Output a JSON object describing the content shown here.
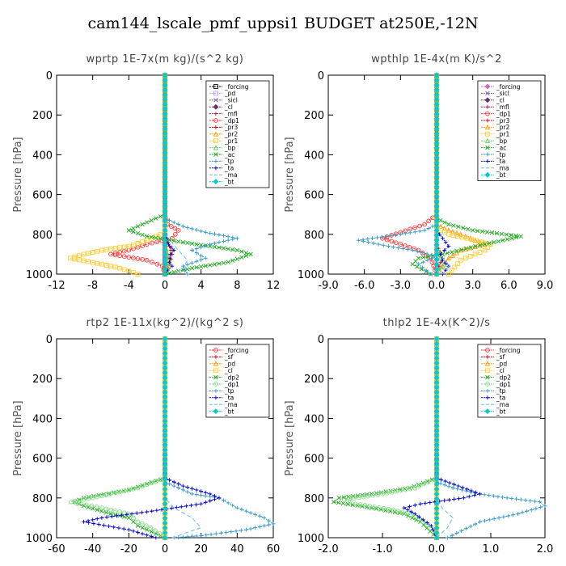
{
  "figure": {
    "title": "cam144_lscale_pmf_uppsi1  BUDGET at250E,-12N"
  },
  "chart_data": [
    {
      "type": "line",
      "title": "wprtp   1E-7x(m kg)/(s^2 kg)",
      "ylabel": "Pressure [hPa]",
      "xlim": [
        -12,
        12
      ],
      "ylim": [
        1000,
        0
      ],
      "y_inverted": true,
      "xticks": [
        "-12",
        "-8",
        "-4",
        "0",
        "4",
        "8",
        "12"
      ],
      "yticks": [
        "0",
        "200",
        "400",
        "600",
        "800",
        "1000"
      ],
      "legend": {
        "placement": "top-right"
      },
      "series": [
        {
          "name": "_forcing",
          "color": "#000000",
          "marker": "square",
          "x": [
            0,
            0
          ],
          "y": [
            0,
            1000
          ]
        },
        {
          "name": "_pd",
          "color": "#b8a4e6",
          "marker": "square",
          "x": [
            0,
            0
          ],
          "y": [
            0,
            1000
          ]
        },
        {
          "name": "_sicl",
          "color": "#8a5aa8",
          "marker": "x",
          "x": [
            0,
            0
          ],
          "y": [
            0,
            1000
          ]
        },
        {
          "name": "_cl",
          "color": "#6b2c6b",
          "marker": "diamond",
          "x": [
            0,
            0
          ],
          "y": [
            0,
            1000
          ]
        },
        {
          "name": "_mfl",
          "color": "#9e1b5a",
          "marker": "cross",
          "x": [
            0,
            0
          ],
          "y": [
            0,
            1000
          ]
        },
        {
          "name": "_dp1",
          "color": "#ff3333",
          "marker": "circle",
          "x": [
            0,
            0,
            0.3,
            1.5,
            0.8,
            -2,
            -4,
            -6,
            -2,
            -0.3,
            0
          ],
          "y": [
            0,
            700,
            750,
            780,
            820,
            850,
            880,
            900,
            930,
            960,
            1000
          ]
        },
        {
          "name": "_pr3",
          "color": "#cc0000",
          "marker": "cross",
          "x": [
            0,
            0,
            0.5,
            0.8,
            0.5,
            0,
            0
          ],
          "y": [
            0,
            800,
            860,
            900,
            950,
            980,
            1000
          ]
        },
        {
          "name": "_pr2",
          "color": "#ff9900",
          "marker": "triangle",
          "x": [
            0,
            0,
            0.3,
            0.5,
            0,
            0
          ],
          "y": [
            0,
            850,
            900,
            950,
            980,
            1000
          ]
        },
        {
          "name": "_pr1",
          "color": "#ffcc33",
          "marker": "square",
          "x": [
            0,
            0,
            -0.5,
            -2,
            -4,
            -7,
            -9,
            -10.5,
            -7,
            -5,
            -3
          ],
          "y": [
            0,
            780,
            800,
            830,
            860,
            880,
            900,
            920,
            950,
            970,
            1000
          ]
        },
        {
          "name": "_bp",
          "color": "#66cc66",
          "marker": "triangle",
          "x": [
            0,
            0,
            0.2,
            0.4,
            0.2,
            0
          ],
          "y": [
            0,
            850,
            900,
            950,
            980,
            1000
          ]
        },
        {
          "name": "_ac",
          "color": "#22aa22",
          "marker": "x",
          "x": [
            0,
            0,
            -2,
            -4,
            -2,
            2,
            5,
            8,
            9.5,
            7,
            3,
            0
          ],
          "y": [
            0,
            700,
            740,
            780,
            810,
            840,
            860,
            880,
            900,
            940,
            970,
            1000
          ]
        },
        {
          "name": "_tp",
          "color": "#3399cc",
          "marker": "cross",
          "x": [
            0,
            0,
            2,
            4.5,
            8,
            5,
            3,
            4.5,
            2,
            2.5
          ],
          "y": [
            0,
            720,
            760,
            790,
            820,
            850,
            880,
            920,
            960,
            1000
          ]
        },
        {
          "name": "_ta",
          "color": "#0000cc",
          "marker": "cross",
          "x": [
            0,
            0,
            0.4,
            1,
            0.6,
            0.5,
            0.8,
            0.3,
            0
          ],
          "y": [
            0,
            800,
            850,
            880,
            900,
            940,
            960,
            980,
            1000
          ]
        },
        {
          "name": "_ma",
          "color": "#66bbee",
          "marker": "none",
          "x": [
            0,
            0,
            1.5,
            2.5,
            2,
            1
          ],
          "y": [
            0,
            800,
            880,
            930,
            970,
            1000
          ]
        },
        {
          "name": "_bt",
          "color": "#00cccc",
          "marker": "diamond",
          "x": [
            0,
            0
          ],
          "y": [
            0,
            1000
          ]
        }
      ]
    },
    {
      "type": "line",
      "title": "wpthlp   1E-4x(m K)/s^2",
      "ylabel": "Pressure [hPa]",
      "xlim": [
        -9,
        9
      ],
      "ylim": [
        1000,
        0
      ],
      "y_inverted": true,
      "xticks": [
        "-9.0",
        "-6.0",
        "-3.0",
        "0.0",
        "3.0",
        "6.0",
        "9.0"
      ],
      "yticks": [
        "0",
        "200",
        "400",
        "600",
        "800",
        "1000"
      ],
      "legend": {
        "placement": "top-right"
      },
      "series": [
        {
          "name": "_forcing",
          "color": "#cc66cc",
          "marker": "diamond",
          "x": [
            0,
            0
          ],
          "y": [
            0,
            1000
          ]
        },
        {
          "name": "_sicl",
          "color": "#8a5aa8",
          "marker": "x",
          "x": [
            0,
            0
          ],
          "y": [
            0,
            1000
          ]
        },
        {
          "name": "_cl",
          "color": "#6b2c6b",
          "marker": "diamond",
          "x": [
            0,
            0
          ],
          "y": [
            0,
            1000
          ]
        },
        {
          "name": "_mfl",
          "color": "#9e1b5a",
          "marker": "cross",
          "x": [
            0,
            0
          ],
          "y": [
            0,
            1000
          ]
        },
        {
          "name": "_dp1",
          "color": "#ff3333",
          "marker": "circle",
          "x": [
            0,
            0,
            -1,
            -3,
            -4.5,
            -3,
            -1.5,
            -0.5,
            0
          ],
          "y": [
            0,
            700,
            750,
            790,
            820,
            850,
            880,
            920,
            1000
          ]
        },
        {
          "name": "_pr3",
          "color": "#cc0000",
          "marker": "cross",
          "x": [
            0,
            0,
            0.3,
            0.5,
            0.2,
            0
          ],
          "y": [
            0,
            850,
            890,
            920,
            960,
            1000
          ]
        },
        {
          "name": "_pr2",
          "color": "#ff9900",
          "marker": "triangle",
          "x": [
            0,
            0,
            1,
            2,
            4,
            2,
            1,
            0
          ],
          "y": [
            0,
            750,
            780,
            800,
            850,
            880,
            920,
            1000
          ]
        },
        {
          "name": "_pr1",
          "color": "#ffcc33",
          "marker": "square",
          "x": [
            0,
            0,
            1,
            2.5,
            4.5,
            4,
            2,
            1
          ],
          "y": [
            0,
            770,
            800,
            820,
            850,
            880,
            930,
            1000
          ]
        },
        {
          "name": "_bp",
          "color": "#66cc66",
          "marker": "triangle",
          "x": [
            0,
            0,
            0.3,
            0.6,
            0.2,
            0
          ],
          "y": [
            0,
            880,
            920,
            950,
            980,
            1000
          ]
        },
        {
          "name": "_ac",
          "color": "#22aa22",
          "marker": "x",
          "x": [
            0,
            0,
            1,
            3,
            7,
            4,
            0.5,
            -1.5,
            -2,
            -0.5
          ],
          "y": [
            0,
            720,
            750,
            780,
            810,
            850,
            900,
            920,
            950,
            1000
          ]
        },
        {
          "name": "_tp",
          "color": "#3399cc",
          "marker": "cross",
          "x": [
            0,
            0,
            -1,
            -3,
            -6.5,
            -4,
            -2,
            0,
            -1.5,
            -0.5
          ],
          "y": [
            0,
            750,
            780,
            800,
            830,
            860,
            880,
            910,
            950,
            1000
          ]
        },
        {
          "name": "_ta",
          "color": "#0000cc",
          "marker": "cross",
          "x": [
            0,
            0,
            0.5,
            1,
            0.3,
            0.5,
            1,
            0.5
          ],
          "y": [
            0,
            780,
            820,
            860,
            900,
            930,
            960,
            1000
          ]
        },
        {
          "name": "_ma",
          "color": "#66bbee",
          "marker": "none",
          "x": [
            0,
            0,
            0.5,
            1,
            0.5
          ],
          "y": [
            0,
            850,
            920,
            960,
            1000
          ]
        },
        {
          "name": "_bt",
          "color": "#00cccc",
          "marker": "diamond",
          "x": [
            0,
            0
          ],
          "y": [
            0,
            1000
          ]
        }
      ]
    },
    {
      "type": "line",
      "title": "rtp2   1E-11x(kg^2)/(kg^2 s)",
      "ylabel": "Pressure [hPa]",
      "xlim": [
        -60,
        60
      ],
      "ylim": [
        1000,
        0
      ],
      "y_inverted": true,
      "xticks": [
        "-60",
        "-40",
        "-20",
        "0",
        "20",
        "40",
        "60"
      ],
      "yticks": [
        "0",
        "200",
        "400",
        "600",
        "800",
        "1000"
      ],
      "legend": {
        "placement": "top-right"
      },
      "series": [
        {
          "name": "_forcing",
          "color": "#ff3333",
          "marker": "circle",
          "x": [
            0,
            0
          ],
          "y": [
            0,
            1000
          ]
        },
        {
          "name": "_sf",
          "color": "#cc0000",
          "marker": "cross",
          "x": [
            0,
            0
          ],
          "y": [
            0,
            1000
          ]
        },
        {
          "name": "_pd",
          "color": "#ff9900",
          "marker": "triangle",
          "x": [
            0,
            0
          ],
          "y": [
            0,
            1000
          ]
        },
        {
          "name": "_cl",
          "color": "#ffcc33",
          "marker": "square",
          "x": [
            0,
            0
          ],
          "y": [
            0,
            1000
          ]
        },
        {
          "name": "_dp2",
          "color": "#22aa22",
          "marker": "x",
          "x": [
            0,
            0,
            -20,
            -45,
            -50,
            -45,
            -30,
            -20,
            -15,
            -10,
            -5,
            0
          ],
          "y": [
            0,
            700,
            760,
            800,
            820,
            840,
            880,
            900,
            940,
            960,
            980,
            1000
          ]
        },
        {
          "name": "_dp1",
          "color": "#88dd88",
          "marker": "circle",
          "x": [
            0,
            0,
            -15,
            -40,
            -52,
            -35,
            -20,
            -15,
            -8,
            -3,
            0
          ],
          "y": [
            0,
            700,
            750,
            800,
            820,
            850,
            880,
            920,
            950,
            980,
            1000
          ]
        },
        {
          "name": "_tp",
          "color": "#3399cc",
          "marker": "cross",
          "x": [
            0,
            0,
            5,
            15,
            30,
            40,
            55,
            60,
            45,
            20,
            5
          ],
          "y": [
            0,
            720,
            740,
            780,
            800,
            850,
            900,
            930,
            960,
            990,
            1000
          ]
        },
        {
          "name": "_ta",
          "color": "#0000cc",
          "marker": "cross",
          "x": [
            0,
            0,
            10,
            25,
            30,
            20,
            -10,
            -35,
            -45,
            -20,
            -5
          ],
          "y": [
            0,
            700,
            740,
            780,
            800,
            830,
            870,
            900,
            920,
            960,
            1000
          ]
        },
        {
          "name": "_ma",
          "color": "#66bbee",
          "marker": "none",
          "x": [
            0,
            0,
            5,
            15,
            20,
            10,
            5
          ],
          "y": [
            0,
            800,
            850,
            900,
            950,
            980,
            1000
          ]
        },
        {
          "name": "_bt",
          "color": "#00cccc",
          "marker": "diamond",
          "x": [
            0,
            0
          ],
          "y": [
            0,
            1000
          ]
        }
      ]
    },
    {
      "type": "line",
      "title": "thlp2   1E-4x(K^2)/s",
      "ylabel": "Pressure [hPa]",
      "xlim": [
        -2,
        2
      ],
      "ylim": [
        1000,
        0
      ],
      "y_inverted": true,
      "xticks": [
        "-2.0",
        "-1.0",
        "0.0",
        "1.0",
        "2.0"
      ],
      "yticks": [
        "0",
        "200",
        "400",
        "600",
        "800",
        "1000"
      ],
      "legend": {
        "placement": "top-right"
      },
      "series": [
        {
          "name": "_forcing",
          "color": "#ff3333",
          "marker": "circle",
          "x": [
            0,
            0
          ],
          "y": [
            0,
            1000
          ]
        },
        {
          "name": "_sf",
          "color": "#cc0000",
          "marker": "cross",
          "x": [
            0,
            0
          ],
          "y": [
            0,
            1000
          ]
        },
        {
          "name": "_pd",
          "color": "#ff9900",
          "marker": "triangle",
          "x": [
            0,
            0
          ],
          "y": [
            0,
            1000
          ]
        },
        {
          "name": "_cl",
          "color": "#ffcc33",
          "marker": "square",
          "x": [
            0,
            0
          ],
          "y": [
            0,
            1000
          ]
        },
        {
          "name": "_dp2",
          "color": "#22aa22",
          "marker": "x",
          "x": [
            0,
            0,
            -0.5,
            -1.2,
            -1.8,
            -1.9,
            -1.2,
            -0.6,
            -0.3,
            0
          ],
          "y": [
            0,
            700,
            750,
            780,
            800,
            820,
            850,
            880,
            920,
            1000
          ]
        },
        {
          "name": "_dp1",
          "color": "#88dd88",
          "marker": "circle",
          "x": [
            0,
            0,
            -0.4,
            -1,
            -1.7,
            -1.5,
            -0.8,
            -0.4,
            -0.1,
            0
          ],
          "y": [
            0,
            700,
            750,
            780,
            810,
            830,
            860,
            890,
            950,
            1000
          ]
        },
        {
          "name": "_tp",
          "color": "#3399cc",
          "marker": "cross",
          "x": [
            0,
            0,
            0.3,
            0.8,
            1.3,
            1.9,
            2,
            1.5,
            0.8,
            0.2
          ],
          "y": [
            0,
            720,
            750,
            780,
            800,
            820,
            840,
            880,
            920,
            1000
          ]
        },
        {
          "name": "_ta",
          "color": "#0000cc",
          "marker": "cross",
          "x": [
            0,
            0,
            0.4,
            0.8,
            0.5,
            -0.3,
            -0.6,
            -0.4,
            -0.1,
            0
          ],
          "y": [
            0,
            700,
            740,
            780,
            800,
            830,
            850,
            880,
            940,
            1000
          ]
        },
        {
          "name": "_ma",
          "color": "#66bbee",
          "marker": "none",
          "x": [
            0,
            0,
            0.1,
            0.3,
            0.2,
            0
          ],
          "y": [
            0,
            800,
            850,
            900,
            950,
            1000
          ]
        },
        {
          "name": "_bt",
          "color": "#00cccc",
          "marker": "diamond",
          "x": [
            0,
            0
          ],
          "y": [
            0,
            1000
          ]
        }
      ]
    }
  ]
}
